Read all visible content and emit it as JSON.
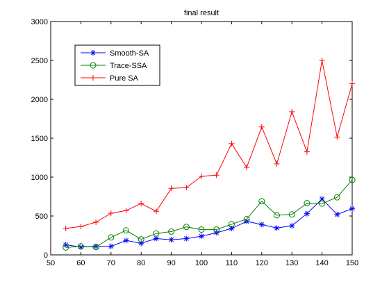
{
  "chart_data": {
    "type": "line",
    "title": "final result",
    "xlabel": "",
    "ylabel": "",
    "xlim": [
      50,
      150
    ],
    "ylim": [
      0,
      3000
    ],
    "x_ticks": [
      50,
      60,
      70,
      80,
      90,
      100,
      110,
      120,
      130,
      140,
      150
    ],
    "y_ticks": [
      0,
      500,
      1000,
      1500,
      2000,
      2500,
      3000
    ],
    "x_tick_labels": [
      "50",
      "60",
      "70",
      "80",
      "90",
      "100",
      "110",
      "120",
      "130",
      "140",
      "150"
    ],
    "y_tick_labels": [
      "0",
      "500",
      "1000",
      "1500",
      "2000",
      "2500",
      "3000"
    ],
    "grid": false,
    "legend_position": "top-left",
    "x": [
      55,
      60,
      65,
      70,
      75,
      80,
      85,
      90,
      95,
      100,
      105,
      110,
      115,
      120,
      125,
      130,
      135,
      140,
      145,
      150
    ],
    "series": [
      {
        "name": "Smooth-SA",
        "color": "#0000ff",
        "marker": "asterisk",
        "values": [
          130,
          100,
          110,
          110,
          185,
          150,
          210,
          195,
          210,
          240,
          285,
          340,
          430,
          390,
          345,
          375,
          530,
          720,
          520,
          595
        ]
      },
      {
        "name": "Trace-SSA",
        "color": "#008000",
        "marker": "circle",
        "values": [
          95,
          110,
          100,
          225,
          315,
          200,
          275,
          300,
          360,
          325,
          325,
          395,
          460,
          690,
          510,
          520,
          665,
          660,
          740,
          965
        ]
      },
      {
        "name": "Pure SA",
        "color": "#ff0000",
        "marker": "plus",
        "values": [
          340,
          365,
          420,
          535,
          570,
          660,
          560,
          855,
          865,
          1010,
          1025,
          1430,
          1125,
          1645,
          1170,
          1840,
          1325,
          2500,
          1515,
          2200
        ]
      }
    ]
  }
}
